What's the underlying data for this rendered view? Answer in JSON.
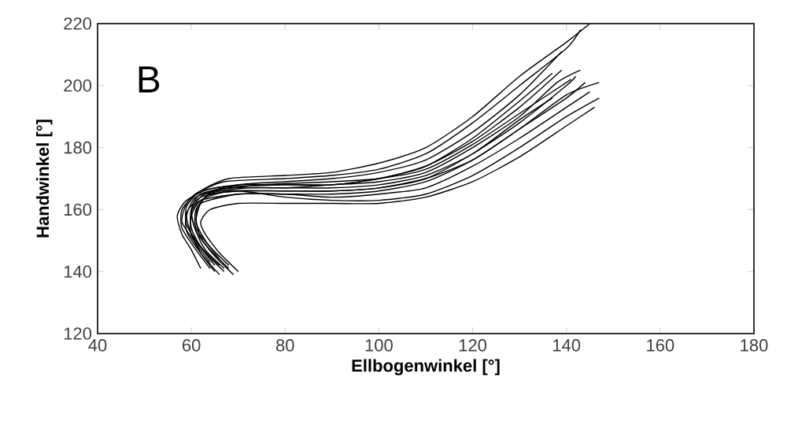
{
  "chart_data": {
    "type": "line",
    "xlabel": "Ellbogenwinkel [°]",
    "ylabel": "Handwinkel [°]",
    "annotations": [
      "B"
    ],
    "xlim": [
      40,
      180
    ],
    "xticks": [
      40,
      60,
      80,
      100,
      120,
      140,
      160,
      180
    ],
    "ylim": [
      120,
      220
    ],
    "yticks": [
      120,
      140,
      160,
      180,
      200,
      220
    ],
    "marker": "none",
    "line_style": "solid",
    "grid": false,
    "series": [
      {
        "color": "#000000",
        "x": [
          66,
          62,
          59,
          59,
          62,
          68,
          80,
          90,
          100,
          110,
          120,
          130,
          140,
          145
        ],
        "values": [
          142,
          148,
          155,
          161,
          166,
          170,
          171,
          172,
          175,
          180,
          190,
          203,
          214,
          220
        ]
      },
      {
        "color": "#000000",
        "x": [
          64,
          61,
          58,
          58,
          61,
          67,
          80,
          90,
          100,
          110,
          120,
          130,
          140,
          143
        ],
        "values": [
          141,
          147,
          154,
          160,
          165,
          169,
          170,
          171,
          173,
          178,
          188,
          200,
          212,
          218
        ]
      },
      {
        "color": "#000000",
        "x": [
          68,
          64,
          61,
          60,
          62,
          70,
          80,
          90,
          100,
          110,
          120,
          130,
          139
        ],
        "values": [
          141,
          147,
          153,
          160,
          165,
          168,
          169,
          170,
          172,
          176,
          185,
          197,
          211
        ]
      },
      {
        "color": "#000000",
        "x": [
          65,
          62,
          60,
          59,
          61,
          68,
          80,
          90,
          100,
          110,
          120,
          130,
          138,
          143
        ],
        "values": [
          140,
          146,
          152,
          158,
          164,
          167,
          167,
          168,
          169,
          172,
          180,
          190,
          201,
          205
        ]
      },
      {
        "color": "#000000",
        "x": [
          69,
          65,
          62,
          61,
          62,
          70,
          80,
          90,
          100,
          110,
          120,
          130,
          140,
          147
        ],
        "values": [
          139,
          145,
          151,
          157,
          162,
          165,
          165,
          165,
          166,
          169,
          176,
          186,
          197,
          201
        ]
      },
      {
        "color": "#000000",
        "x": [
          67,
          63,
          60,
          60,
          62,
          68,
          80,
          90,
          100,
          110,
          120,
          130,
          140,
          142
        ],
        "values": [
          140,
          146,
          152,
          158,
          163,
          166,
          166,
          166,
          167,
          170,
          178,
          188,
          200,
          203
        ]
      },
      {
        "color": "#000000",
        "x": [
          66,
          62,
          59,
          59,
          62,
          70,
          80,
          90,
          100,
          110,
          120,
          130,
          140,
          147
        ],
        "values": [
          139,
          146,
          153,
          159,
          164,
          166,
          164,
          163,
          163,
          165,
          171,
          180,
          190,
          196
        ]
      },
      {
        "color": "#000000",
        "x": [
          70,
          66,
          63,
          62,
          64,
          70,
          80,
          90,
          100,
          110,
          120,
          130,
          140,
          146
        ],
        "values": [
          140,
          146,
          152,
          156,
          160,
          162,
          162,
          162,
          162,
          164,
          169,
          177,
          187,
          193
        ]
      },
      {
        "color": "#000000",
        "x": [
          65,
          62,
          60,
          60,
          63,
          72,
          80,
          90,
          100,
          110,
          120,
          130,
          137
        ],
        "values": [
          142,
          148,
          154,
          160,
          165,
          167,
          167,
          167,
          168,
          171,
          178,
          189,
          196
        ]
      },
      {
        "color": "#000000",
        "x": [
          67,
          63,
          61,
          60,
          62,
          70,
          80,
          90,
          100,
          110,
          120,
          130,
          140,
          145
        ],
        "values": [
          141,
          147,
          153,
          159,
          163,
          165,
          165,
          164,
          165,
          167,
          174,
          183,
          193,
          198
        ]
      },
      {
        "color": "#000000",
        "x": [
          64,
          61,
          58,
          59,
          62,
          70,
          80,
          90,
          100,
          110,
          120,
          130,
          139
        ],
        "values": [
          143,
          149,
          156,
          162,
          166,
          168,
          168,
          168,
          170,
          174,
          182,
          193,
          205
        ]
      },
      {
        "color": "#000000",
        "x": [
          68,
          64,
          61,
          61,
          64,
          72,
          80,
          90,
          100,
          110,
          120,
          130,
          140,
          144
        ],
        "values": [
          142,
          148,
          154,
          160,
          165,
          166,
          166,
          166,
          167,
          170,
          176,
          186,
          196,
          201
        ]
      },
      {
        "color": "#000000",
        "x": [
          66,
          63,
          61,
          62,
          65,
          75,
          90,
          100,
          110,
          120,
          130,
          141
        ],
        "values": [
          144,
          150,
          156,
          162,
          166,
          168,
          169,
          170,
          173,
          181,
          191,
          202
        ]
      },
      {
        "color": "#000000",
        "x": [
          62,
          60,
          58,
          57,
          59,
          65,
          80,
          90,
          100,
          110,
          120,
          130,
          137
        ],
        "values": [
          141,
          147,
          152,
          158,
          163,
          167,
          168,
          168,
          170,
          174,
          183,
          195,
          204
        ]
      }
    ]
  }
}
